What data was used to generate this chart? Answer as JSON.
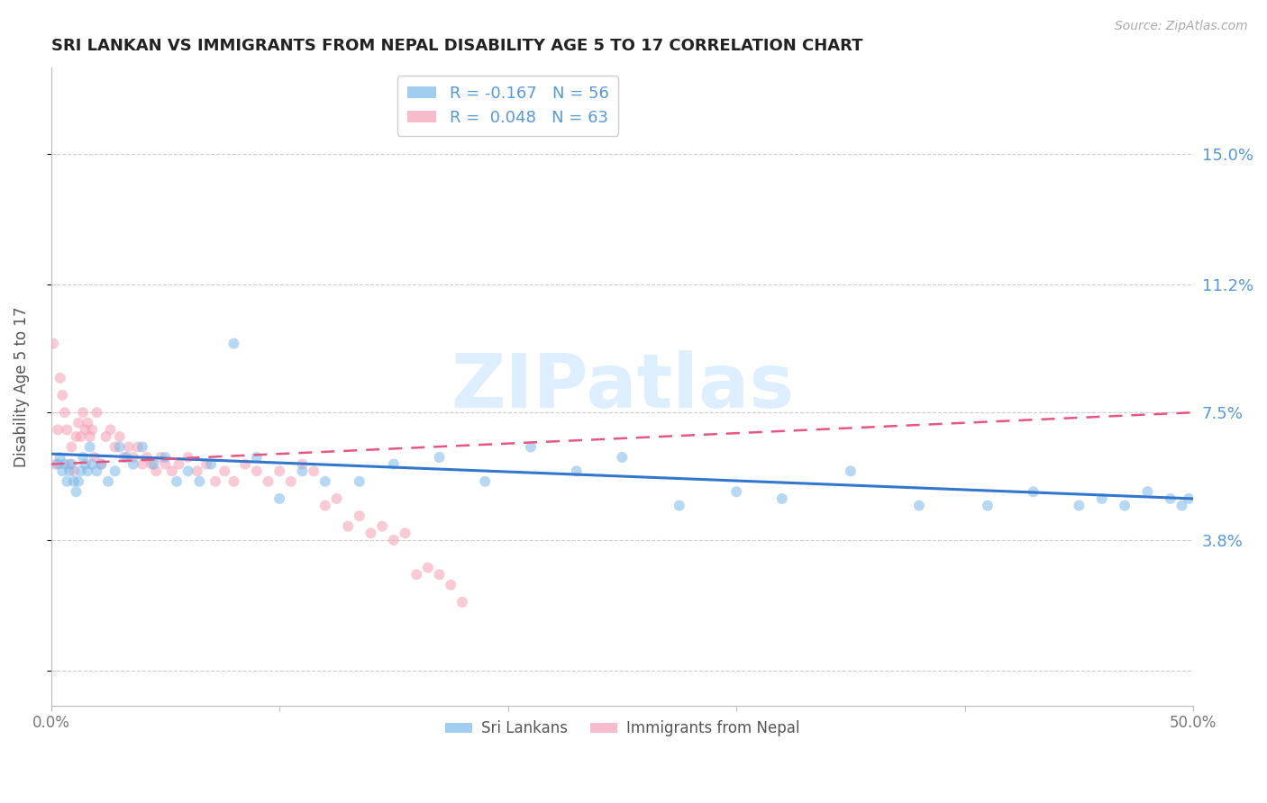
{
  "title": "SRI LANKAN VS IMMIGRANTS FROM NEPAL DISABILITY AGE 5 TO 17 CORRELATION CHART",
  "source": "Source: ZipAtlas.com",
  "ylabel": "Disability Age 5 to 17",
  "xlim": [
    0.0,
    0.5
  ],
  "ylim": [
    -0.01,
    0.175
  ],
  "yticks": [
    0.0,
    0.038,
    0.075,
    0.112,
    0.15
  ],
  "ytick_labels": [
    "",
    "3.8%",
    "7.5%",
    "11.2%",
    "15.0%"
  ],
  "xticks": [
    0.0,
    0.1,
    0.2,
    0.3,
    0.4,
    0.5
  ],
  "xtick_labels": [
    "0.0%",
    "",
    "",
    "",
    "",
    "50.0%"
  ],
  "legend_label1": "Sri Lankans",
  "legend_label2": "Immigrants from Nepal",
  "sri_lankan_color": "#7ab8e8",
  "nepal_color": "#f5a0b5",
  "sri_lankan_line_color": "#3377cc",
  "nepal_line_color": "#e85580",
  "watermark_color": "#ddeeff",
  "sri_lankan_R": -0.167,
  "sri_lankan_N": 56,
  "nepal_R": 0.048,
  "nepal_N": 63,
  "sri_lankan_x": [
    0.003,
    0.004,
    0.005,
    0.006,
    0.007,
    0.008,
    0.009,
    0.01,
    0.011,
    0.012,
    0.013,
    0.014,
    0.015,
    0.016,
    0.017,
    0.018,
    0.02,
    0.022,
    0.025,
    0.028,
    0.03,
    0.033,
    0.036,
    0.04,
    0.045,
    0.05,
    0.055,
    0.06,
    0.065,
    0.07,
    0.08,
    0.09,
    0.1,
    0.11,
    0.12,
    0.135,
    0.15,
    0.17,
    0.19,
    0.21,
    0.23,
    0.25,
    0.275,
    0.3,
    0.32,
    0.35,
    0.38,
    0.41,
    0.43,
    0.45,
    0.46,
    0.47,
    0.48,
    0.49,
    0.495,
    0.498
  ],
  "sri_lankan_y": [
    0.06,
    0.062,
    0.058,
    0.06,
    0.055,
    0.058,
    0.06,
    0.055,
    0.052,
    0.055,
    0.058,
    0.062,
    0.06,
    0.058,
    0.065,
    0.06,
    0.058,
    0.06,
    0.055,
    0.058,
    0.065,
    0.062,
    0.06,
    0.065,
    0.06,
    0.062,
    0.055,
    0.058,
    0.055,
    0.06,
    0.095,
    0.062,
    0.05,
    0.058,
    0.055,
    0.055,
    0.06,
    0.062,
    0.055,
    0.065,
    0.058,
    0.062,
    0.048,
    0.052,
    0.05,
    0.058,
    0.048,
    0.048,
    0.052,
    0.048,
    0.05,
    0.048,
    0.052,
    0.05,
    0.048,
    0.05
  ],
  "nepal_x": [
    0.001,
    0.002,
    0.003,
    0.004,
    0.005,
    0.006,
    0.007,
    0.008,
    0.009,
    0.01,
    0.011,
    0.012,
    0.013,
    0.014,
    0.015,
    0.016,
    0.017,
    0.018,
    0.019,
    0.02,
    0.022,
    0.024,
    0.026,
    0.028,
    0.03,
    0.032,
    0.034,
    0.036,
    0.038,
    0.04,
    0.042,
    0.044,
    0.046,
    0.048,
    0.05,
    0.053,
    0.056,
    0.06,
    0.064,
    0.068,
    0.072,
    0.076,
    0.08,
    0.085,
    0.09,
    0.095,
    0.1,
    0.105,
    0.11,
    0.115,
    0.12,
    0.125,
    0.13,
    0.135,
    0.14,
    0.145,
    0.15,
    0.155,
    0.16,
    0.165,
    0.17,
    0.175,
    0.18
  ],
  "nepal_y": [
    0.095,
    0.06,
    0.07,
    0.085,
    0.08,
    0.075,
    0.07,
    0.06,
    0.065,
    0.058,
    0.068,
    0.072,
    0.068,
    0.075,
    0.07,
    0.072,
    0.068,
    0.07,
    0.062,
    0.075,
    0.06,
    0.068,
    0.07,
    0.065,
    0.068,
    0.062,
    0.065,
    0.062,
    0.065,
    0.06,
    0.062,
    0.06,
    0.058,
    0.062,
    0.06,
    0.058,
    0.06,
    0.062,
    0.058,
    0.06,
    0.055,
    0.058,
    0.055,
    0.06,
    0.058,
    0.055,
    0.058,
    0.055,
    0.06,
    0.058,
    0.048,
    0.05,
    0.042,
    0.045,
    0.04,
    0.042,
    0.038,
    0.04,
    0.028,
    0.03,
    0.028,
    0.025,
    0.02
  ],
  "background_color": "#ffffff",
  "grid_color": "#cccccc",
  "axis_color": "#bbbbbb",
  "title_color": "#222222",
  "right_label_color": "#5599dd",
  "tick_color": "#777777",
  "marker_size": 75
}
